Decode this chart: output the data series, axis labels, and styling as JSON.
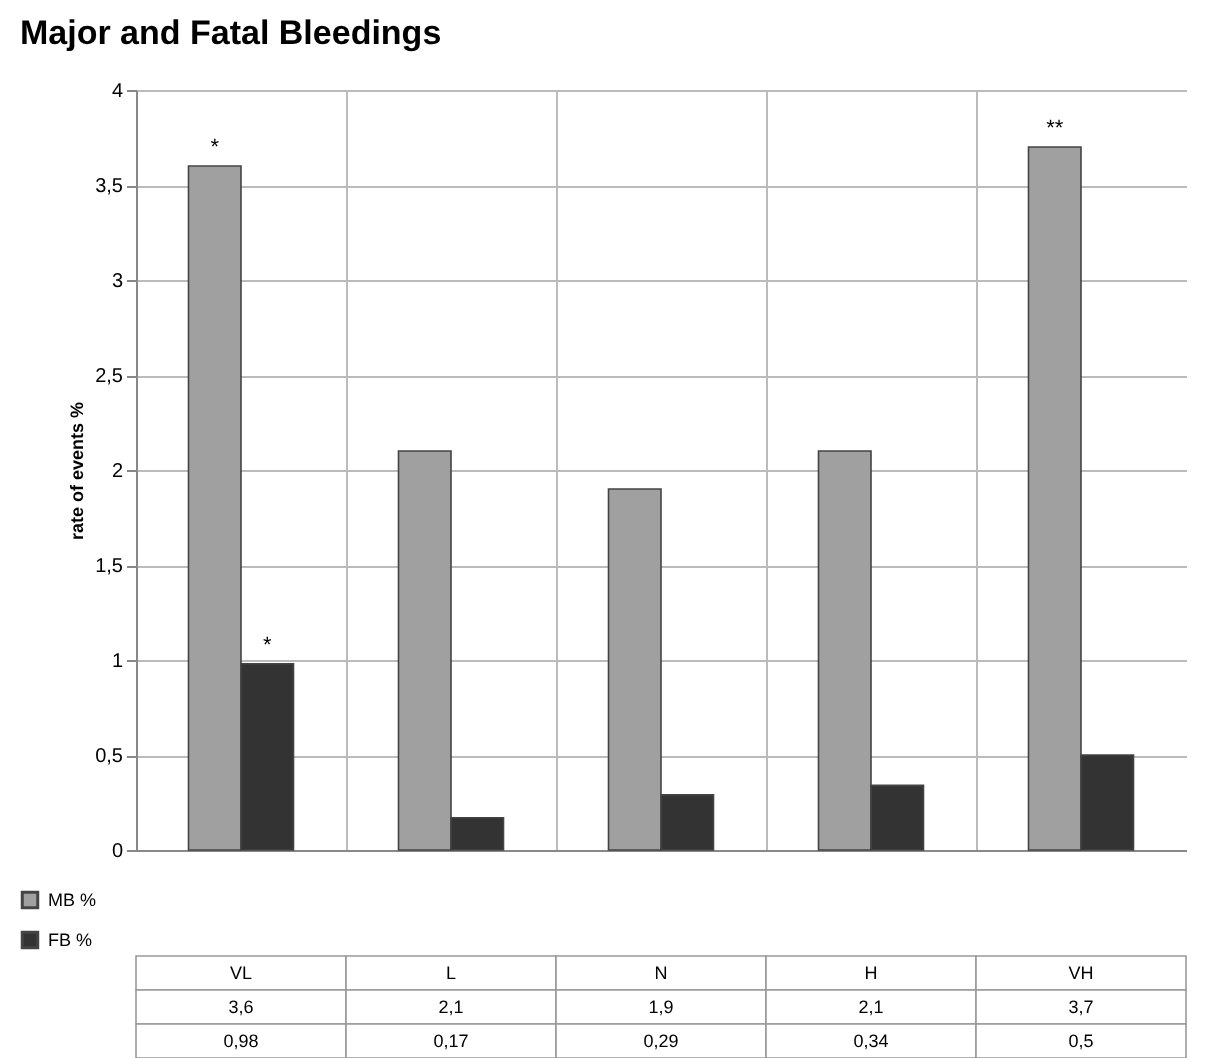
{
  "chart_data": {
    "type": "bar",
    "title": "Major and Fatal Bleedings",
    "ylabel": "rate of events %",
    "categories": [
      "VL",
      "L",
      "N",
      "H",
      "VH"
    ],
    "series": [
      {
        "name": "MB %",
        "color": "#a0a0a0",
        "values": [
          3.6,
          2.1,
          1.9,
          2.1,
          3.7
        ],
        "value_labels": [
          "3,6",
          "2,1",
          "1,9",
          "2,1",
          "3,7"
        ]
      },
      {
        "name": "FB %",
        "color": "#333333",
        "values": [
          0.98,
          0.17,
          0.29,
          0.34,
          0.5
        ],
        "value_labels": [
          "0,98",
          "0,17",
          "0,29",
          "0,34",
          "0,5"
        ]
      }
    ],
    "ylim": [
      0,
      4
    ],
    "yticks": [
      0,
      {
        "value": 0.5,
        "label": "0,5"
      },
      1,
      {
        "value": 1.5,
        "label": "1,5"
      },
      2,
      {
        "value": 2.5,
        "label": "2,5"
      },
      3,
      {
        "value": 3.5,
        "label": "3,5"
      },
      4
    ],
    "grid": "y",
    "legend": "bottom left",
    "annotations": [
      {
        "text": "*",
        "x": "VL",
        "y": 3.6
      },
      {
        "text": "*",
        "x": "VL",
        "y": 0.98
      },
      {
        "text": "**",
        "x": "VH",
        "y": 3.7
      }
    ]
  }
}
